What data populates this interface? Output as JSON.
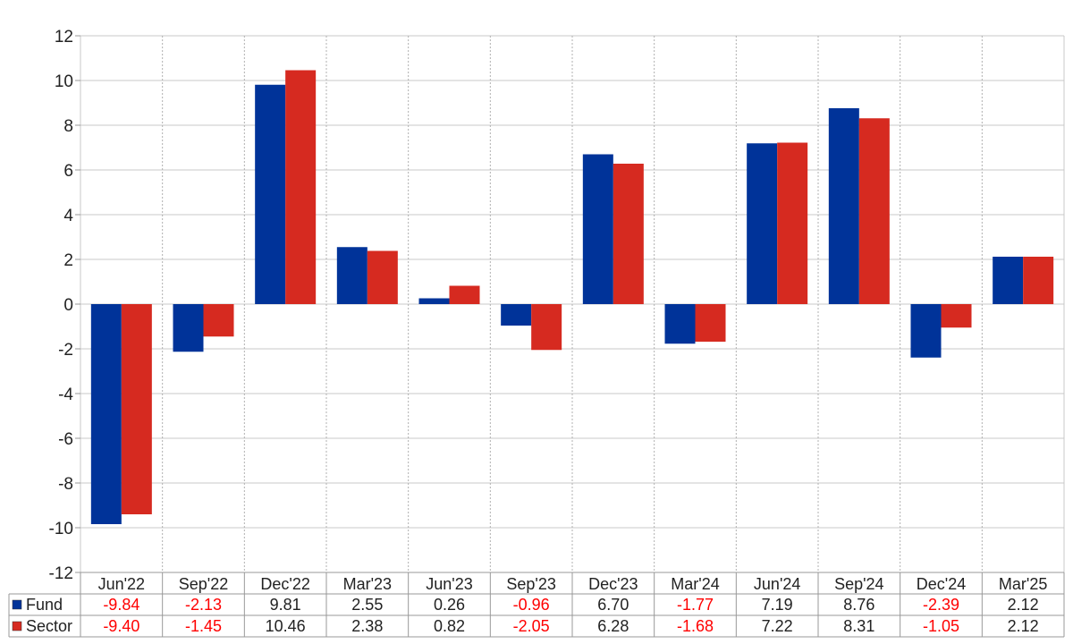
{
  "chart_data": {
    "type": "bar",
    "title": "",
    "xlabel": "",
    "ylabel": "",
    "ylim": [
      -12,
      12
    ],
    "yticks": [
      12,
      10,
      8,
      6,
      4,
      2,
      0,
      -2,
      -4,
      -6,
      -8,
      -10,
      -12
    ],
    "grid": true,
    "categories": [
      "Jun'22",
      "Sep'22",
      "Dec'22",
      "Mar'23",
      "Jun'23",
      "Sep'23",
      "Dec'23",
      "Mar'24",
      "Jun'24",
      "Sep'24",
      "Dec'24",
      "Mar'25"
    ],
    "series": [
      {
        "name": "Fund",
        "color": "#003399",
        "values": [
          -9.84,
          -2.13,
          9.81,
          2.55,
          0.26,
          -0.96,
          6.7,
          -1.77,
          7.19,
          8.76,
          -2.39,
          2.12
        ],
        "labels": [
          "-9.84",
          "-2.13",
          "9.81",
          "2.55",
          "0.26",
          "-0.96",
          "6.70",
          "-1.77",
          "7.19",
          "8.76",
          "-2.39",
          "2.12"
        ]
      },
      {
        "name": "Sector",
        "color": "#d62a20",
        "values": [
          -9.4,
          -1.45,
          10.46,
          2.38,
          0.82,
          -2.05,
          6.28,
          -1.68,
          7.22,
          8.31,
          -1.05,
          2.12
        ],
        "labels": [
          "-9.40",
          "-1.45",
          "10.46",
          "2.38",
          "0.82",
          "-2.05",
          "6.28",
          "-1.68",
          "7.22",
          "8.31",
          "-1.05",
          "2.12"
        ]
      }
    ],
    "negative_value_color": "#ff0000",
    "positive_value_color": "#222222",
    "legend": "table-below"
  }
}
